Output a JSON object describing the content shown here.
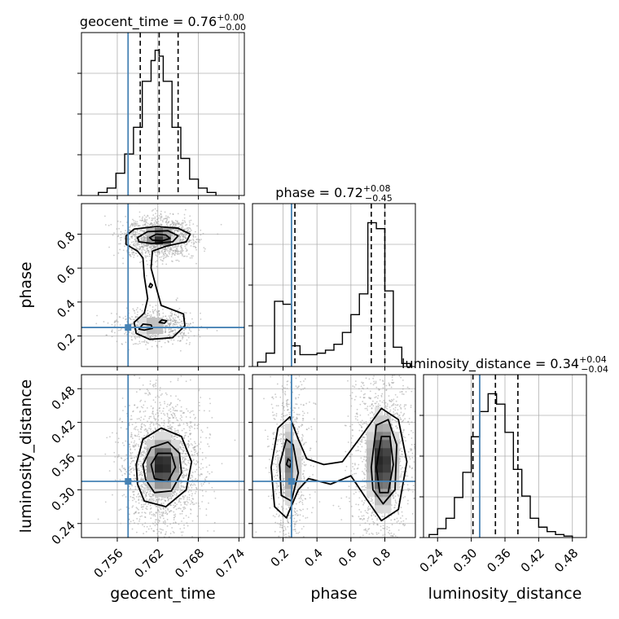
{
  "chart_data": {
    "type": "corner",
    "params": [
      "geocent_time",
      "phase",
      "luminosity_distance"
    ],
    "titles": [
      {
        "param": "geocent_time",
        "text": "geocent_time = 0.76",
        "plus": "+0.00",
        "minus": "−0.00"
      },
      {
        "param": "phase",
        "text": "phase = 0.72",
        "plus": "+0.08",
        "minus": "−0.45"
      },
      {
        "param": "luminosity_distance",
        "text": "luminosity_distance = 0.34",
        "plus": "+0.04",
        "minus": "−0.04"
      }
    ],
    "axis_labels": {
      "x": [
        "geocent_time",
        "phase",
        "luminosity_distance"
      ],
      "y": [
        "phase",
        "luminosity_distance"
      ]
    },
    "ticks": {
      "geocent_time": {
        "values": [
          0.756,
          0.762,
          0.768,
          0.774
        ],
        "labels": [
          "0.756",
          "0.762",
          "0.768",
          "0.774"
        ]
      },
      "phase": {
        "values": [
          0.2,
          0.4,
          0.6,
          0.8
        ],
        "labels": [
          "0.2",
          "0.4",
          "0.6",
          "0.8"
        ]
      },
      "luminosity_distance": {
        "values": [
          0.24,
          0.3,
          0.36,
          0.42,
          0.48
        ],
        "labels": [
          "0.24",
          "0.30",
          "0.36",
          "0.42",
          "0.48"
        ]
      }
    },
    "ranges": {
      "geocent_time": [
        0.7507,
        0.7748
      ],
      "phase": [
        0.02,
        0.98
      ],
      "luminosity_distance": [
        0.215,
        0.505
      ]
    },
    "truths": {
      "geocent_time": 0.7576,
      "phase": 0.25,
      "luminosity_distance": 0.315
    },
    "quantiles": {
      "geocent_time": [
        0.7594,
        0.7622,
        0.765
      ],
      "phase": [
        0.27,
        0.72,
        0.8
      ],
      "luminosity_distance": [
        0.303,
        0.343,
        0.383
      ]
    },
    "histograms": {
      "geocent_time": {
        "edges": [
          0.7532,
          0.7545,
          0.7558,
          0.7571,
          0.7584,
          0.7597,
          0.761,
          0.7616,
          0.7622,
          0.7628,
          0.7641,
          0.7654,
          0.7667,
          0.768,
          0.7693,
          0.7706
        ],
        "counts": [
          0.02,
          0.05,
          0.15,
          0.28,
          0.46,
          0.77,
          0.91,
          0.98,
          0.94,
          0.77,
          0.46,
          0.25,
          0.11,
          0.05,
          0.02
        ]
      },
      "phase": {
        "edges": [
          0.05,
          0.1,
          0.15,
          0.2,
          0.25,
          0.3,
          0.35,
          0.4,
          0.45,
          0.5,
          0.55,
          0.6,
          0.65,
          0.7,
          0.75,
          0.8,
          0.85,
          0.9,
          0.95
        ],
        "counts": [
          0.03,
          0.09,
          0.44,
          0.42,
          0.14,
          0.08,
          0.08,
          0.09,
          0.11,
          0.15,
          0.23,
          0.35,
          0.49,
          0.97,
          0.93,
          0.51,
          0.13,
          0.02
        ]
      },
      "luminosity_distance": {
        "edges": [
          0.225,
          0.24,
          0.255,
          0.27,
          0.285,
          0.3,
          0.315,
          0.33,
          0.345,
          0.36,
          0.375,
          0.39,
          0.405,
          0.42,
          0.435,
          0.45,
          0.465,
          0.48
        ],
        "counts": [
          0.02,
          0.06,
          0.13,
          0.27,
          0.44,
          0.68,
          0.85,
          0.97,
          0.9,
          0.71,
          0.46,
          0.28,
          0.13,
          0.07,
          0.04,
          0.02,
          0.01
        ]
      }
    },
    "contours": [
      {
        "x": "geocent_time",
        "y": "phase",
        "levels": [
          [
            [
              0.7573,
              0.79
            ],
            [
              0.7585,
              0.83
            ],
            [
              0.7618,
              0.845
            ],
            [
              0.765,
              0.835
            ],
            [
              0.7668,
              0.8
            ],
            [
              0.7662,
              0.755
            ],
            [
              0.7633,
              0.73
            ],
            [
              0.7612,
              0.7
            ],
            [
              0.761,
              0.6
            ],
            [
              0.7618,
              0.48
            ],
            [
              0.7625,
              0.38
            ],
            [
              0.7658,
              0.33
            ],
            [
              0.766,
              0.26
            ],
            [
              0.7642,
              0.19
            ],
            [
              0.7608,
              0.18
            ],
            [
              0.7588,
              0.215
            ],
            [
              0.7585,
              0.28
            ],
            [
              0.76,
              0.335
            ],
            [
              0.7605,
              0.42
            ],
            [
              0.76,
              0.55
            ],
            [
              0.7598,
              0.66
            ],
            [
              0.759,
              0.7
            ],
            [
              0.7573,
              0.74
            ]
          ],
          [
            [
              0.759,
              0.78
            ],
            [
              0.7605,
              0.815
            ],
            [
              0.7635,
              0.82
            ],
            [
              0.765,
              0.79
            ],
            [
              0.7642,
              0.755
            ],
            [
              0.7612,
              0.745
            ],
            [
              0.7592,
              0.755
            ]
          ],
          [
            [
              0.7608,
              0.78
            ],
            [
              0.7618,
              0.8
            ],
            [
              0.7632,
              0.795
            ],
            [
              0.7638,
              0.775
            ],
            [
              0.7626,
              0.76
            ],
            [
              0.7612,
              0.765
            ]
          ],
          [
            [
              0.7592,
              0.24
            ],
            [
              0.7598,
              0.27
            ],
            [
              0.761,
              0.265
            ],
            [
              0.7612,
              0.245
            ],
            [
              0.76,
              0.235
            ]
          ],
          [
            [
              0.7622,
              0.28
            ],
            [
              0.7626,
              0.295
            ],
            [
              0.7633,
              0.29
            ],
            [
              0.763,
              0.275
            ]
          ],
          [
            [
              0.7607,
              0.49
            ],
            [
              0.7609,
              0.51
            ],
            [
              0.7612,
              0.5
            ],
            [
              0.761,
              0.485
            ]
          ]
        ]
      },
      {
        "x": "geocent_time",
        "y": "luminosity_distance",
        "levels": [
          [
            [
              0.7588,
              0.345
            ],
            [
              0.7598,
              0.39
            ],
            [
              0.7625,
              0.41
            ],
            [
              0.7655,
              0.395
            ],
            [
              0.767,
              0.35
            ],
            [
              0.7662,
              0.3
            ],
            [
              0.7632,
              0.27
            ],
            [
              0.76,
              0.28
            ],
            [
              0.759,
              0.31
            ]
          ],
          [
            [
              0.7598,
              0.345
            ],
            [
              0.761,
              0.375
            ],
            [
              0.7635,
              0.385
            ],
            [
              0.7652,
              0.365
            ],
            [
              0.7655,
              0.33
            ],
            [
              0.764,
              0.298
            ],
            [
              0.7615,
              0.295
            ],
            [
              0.7602,
              0.318
            ]
          ],
          [
            [
              0.761,
              0.345
            ],
            [
              0.762,
              0.365
            ],
            [
              0.764,
              0.365
            ],
            [
              0.7646,
              0.34
            ],
            [
              0.7635,
              0.315
            ],
            [
              0.7615,
              0.32
            ]
          ]
        ]
      },
      {
        "x": "phase",
        "y": "luminosity_distance",
        "levels": [
          [
            [
              0.13,
              0.34
            ],
            [
              0.17,
              0.41
            ],
            [
              0.24,
              0.43
            ],
            [
              0.29,
              0.39
            ],
            [
              0.34,
              0.355
            ],
            [
              0.44,
              0.345
            ],
            [
              0.55,
              0.35
            ],
            [
              0.66,
              0.395
            ],
            [
              0.78,
              0.445
            ],
            [
              0.88,
              0.425
            ],
            [
              0.93,
              0.35
            ],
            [
              0.88,
              0.265
            ],
            [
              0.78,
              0.245
            ],
            [
              0.7,
              0.28
            ],
            [
              0.6,
              0.325
            ],
            [
              0.48,
              0.31
            ],
            [
              0.35,
              0.32
            ],
            [
              0.29,
              0.3
            ],
            [
              0.22,
              0.25
            ],
            [
              0.15,
              0.27
            ]
          ],
          [
            [
              0.18,
              0.345
            ],
            [
              0.22,
              0.39
            ],
            [
              0.26,
              0.38
            ],
            [
              0.29,
              0.33
            ],
            [
              0.25,
              0.28
            ],
            [
              0.19,
              0.29
            ]
          ],
          [
            [
              0.72,
              0.34
            ],
            [
              0.75,
              0.415
            ],
            [
              0.82,
              0.425
            ],
            [
              0.87,
              0.38
            ],
            [
              0.86,
              0.3
            ],
            [
              0.79,
              0.275
            ],
            [
              0.73,
              0.3
            ]
          ],
          [
            [
              0.75,
              0.34
            ],
            [
              0.78,
              0.395
            ],
            [
              0.83,
              0.395
            ],
            [
              0.85,
              0.345
            ],
            [
              0.82,
              0.295
            ],
            [
              0.77,
              0.295
            ]
          ],
          [
            [
              0.22,
              0.345
            ],
            [
              0.23,
              0.355
            ],
            [
              0.25,
              0.35
            ],
            [
              0.24,
              0.34
            ]
          ]
        ]
      }
    ],
    "peaks": [
      {
        "x": "geocent_time",
        "y": "phase",
        "cx": 0.7623,
        "cy": 0.78,
        "sx": 0.0012,
        "sy": 0.03,
        "w": 1.0
      },
      {
        "x": "geocent_time",
        "y": "phase",
        "cx": 0.7615,
        "cy": 0.26,
        "sx": 0.0014,
        "sy": 0.025,
        "w": 0.45
      },
      {
        "x": "geocent_time",
        "y": "luminosity_distance",
        "cx": 0.7627,
        "cy": 0.343,
        "sx": 0.0014,
        "sy": 0.028,
        "w": 1.0
      },
      {
        "x": "phase",
        "y": "luminosity_distance",
        "cx": 0.785,
        "cy": 0.35,
        "sx": 0.045,
        "sy": 0.045,
        "w": 1.0
      },
      {
        "x": "phase",
        "y": "luminosity_distance",
        "cx": 0.24,
        "cy": 0.345,
        "sx": 0.03,
        "sy": 0.04,
        "w": 0.55
      }
    ],
    "colors": {
      "truth": "#4682b4",
      "histogram": "#000000",
      "contour": "#000000",
      "grid": "#b0b0b0",
      "scatter": "#a0a0a0"
    }
  }
}
